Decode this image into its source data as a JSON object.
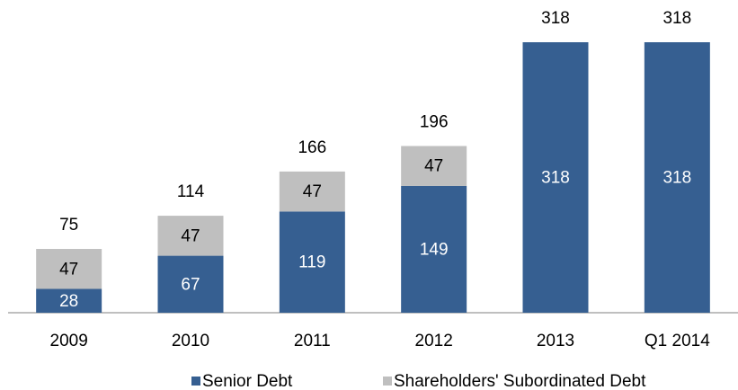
{
  "chart_data": {
    "type": "stacked_bar",
    "categories": [
      "2009",
      "2010",
      "2011",
      "2012",
      "2013",
      "Q1 2014"
    ],
    "series": [
      {
        "name": "Senior Debt",
        "color": "#365f91",
        "values": [
          28,
          67,
          119,
          149,
          318,
          318
        ]
      },
      {
        "name": "Shareholders' Subordinated Debt",
        "color": "#bfbfbf",
        "values": [
          47,
          47,
          47,
          47,
          null,
          null
        ]
      }
    ],
    "totals": [
      75,
      114,
      166,
      196,
      318,
      318
    ],
    "legend": "bottom"
  }
}
